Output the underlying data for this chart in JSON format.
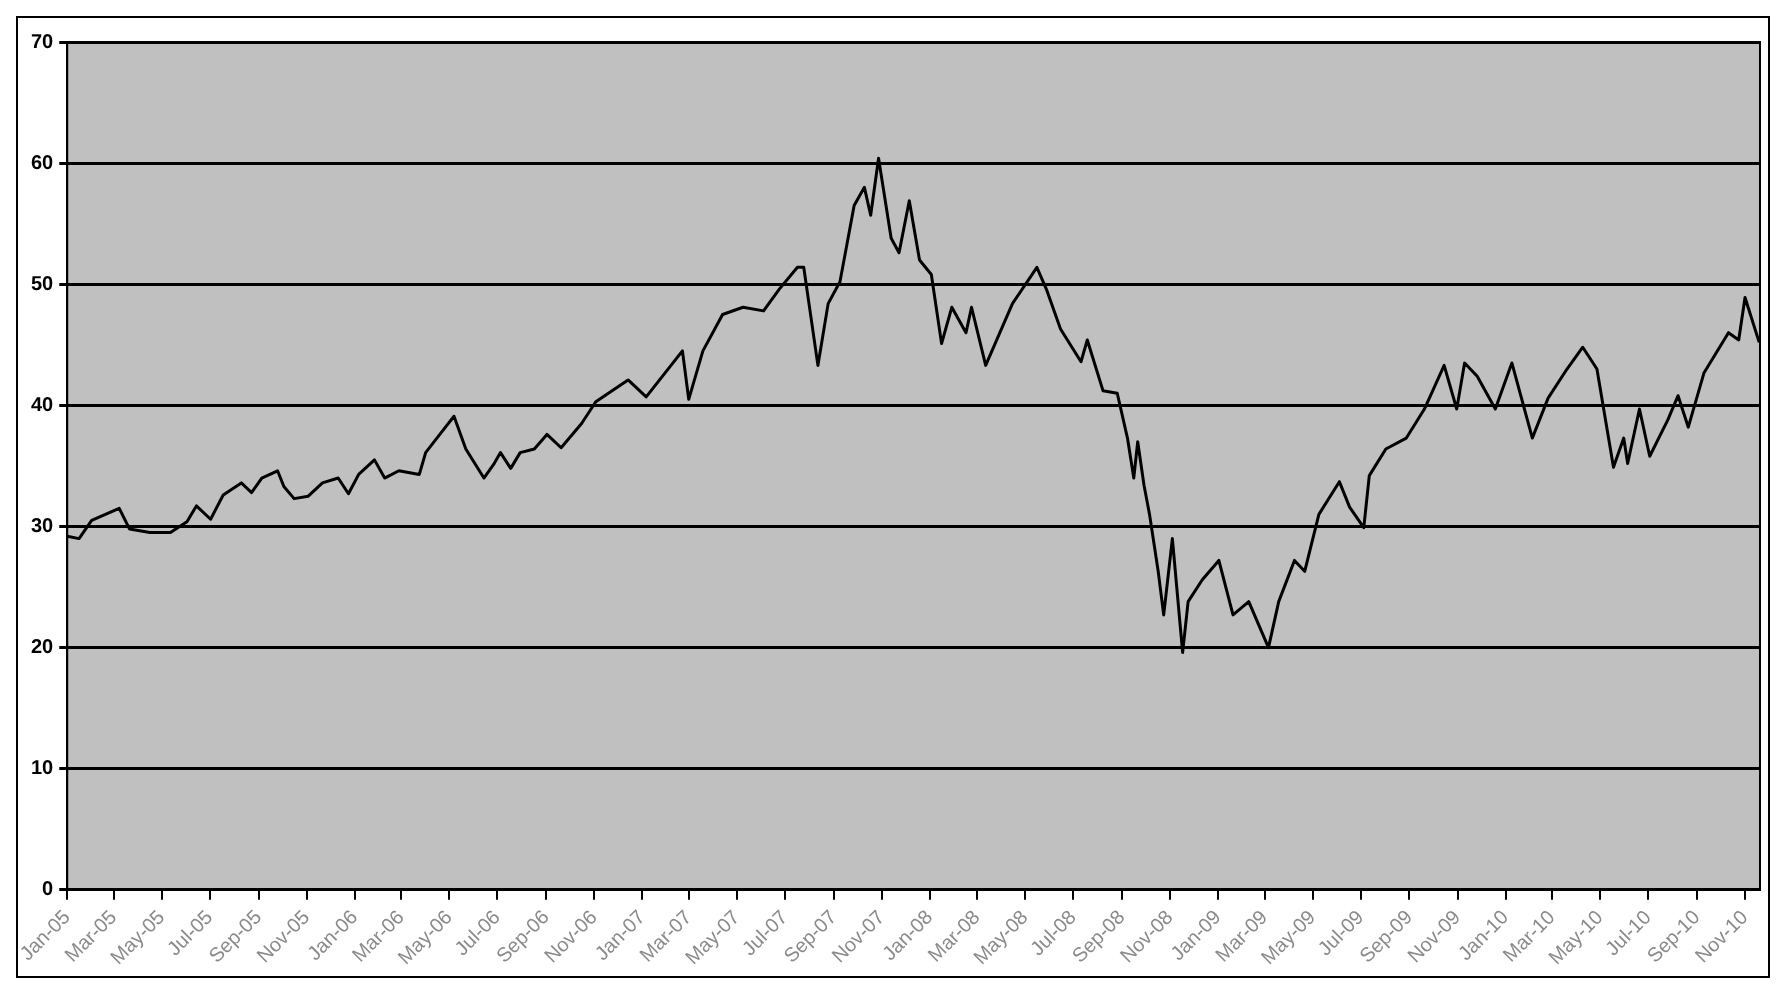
{
  "chart_data": {
    "type": "line",
    "color": "#000000",
    "grid": "y",
    "marker": "none",
    "line_style": "solid",
    "xlim": [
      "2005-01-01",
      "2010-11-20"
    ],
    "ylim": [
      0,
      70
    ],
    "yticks": [
      0,
      10,
      20,
      30,
      40,
      50,
      60,
      70
    ],
    "xticks": [
      {
        "value": "2005-01",
        "label": "Jan-05"
      },
      {
        "value": "2005-03",
        "label": "Mar-05"
      },
      {
        "value": "2005-05",
        "label": "May-05"
      },
      {
        "value": "2005-07",
        "label": "Jul-05"
      },
      {
        "value": "2005-09",
        "label": "Sep-05"
      },
      {
        "value": "2005-11",
        "label": "Nov-05"
      },
      {
        "value": "2006-01",
        "label": "Jan-06"
      },
      {
        "value": "2006-03",
        "label": "Mar-06"
      },
      {
        "value": "2006-05",
        "label": "May-06"
      },
      {
        "value": "2006-07",
        "label": "Jul-06"
      },
      {
        "value": "2006-09",
        "label": "Sep-06"
      },
      {
        "value": "2006-11",
        "label": "Nov-06"
      },
      {
        "value": "2007-01",
        "label": "Jan-07"
      },
      {
        "value": "2007-03",
        "label": "Mar-07"
      },
      {
        "value": "2007-05",
        "label": "May-07"
      },
      {
        "value": "2007-07",
        "label": "Jul-07"
      },
      {
        "value": "2007-09",
        "label": "Sep-07"
      },
      {
        "value": "2007-11",
        "label": "Nov-07"
      },
      {
        "value": "2008-01",
        "label": "Jan-08"
      },
      {
        "value": "2008-03",
        "label": "Mar-08"
      },
      {
        "value": "2008-05",
        "label": "May-08"
      },
      {
        "value": "2008-07",
        "label": "Jul-08"
      },
      {
        "value": "2008-09",
        "label": "Sep-08"
      },
      {
        "value": "2008-11",
        "label": "Nov-08"
      },
      {
        "value": "2009-01",
        "label": "Jan-09"
      },
      {
        "value": "2009-03",
        "label": "Mar-09"
      },
      {
        "value": "2009-05",
        "label": "May-09"
      },
      {
        "value": "2009-07",
        "label": "Jul-09"
      },
      {
        "value": "2009-09",
        "label": "Sep-09"
      },
      {
        "value": "2009-11",
        "label": "Nov-09"
      },
      {
        "value": "2010-01",
        "label": "Jan-10"
      },
      {
        "value": "2010-03",
        "label": "Mar-10"
      },
      {
        "value": "2010-05",
        "label": "May-10"
      },
      {
        "value": "2010-07",
        "label": "Jul-10"
      },
      {
        "value": "2010-09",
        "label": "Sep-10"
      },
      {
        "value": "2010-11",
        "label": "Nov-10"
      }
    ],
    "x": [
      "2005-01-01",
      "2005-01-16",
      "2005-02-01",
      "2005-03-08",
      "2005-03-21",
      "2005-04-16",
      "2005-05-12",
      "2005-06-02",
      "2005-06-14",
      "2005-07-02",
      "2005-07-18",
      "2005-08-10",
      "2005-08-23",
      "2005-09-05",
      "2005-09-25",
      "2005-10-03",
      "2005-10-16",
      "2005-11-03",
      "2005-11-21",
      "2005-12-11",
      "2005-12-24",
      "2006-01-06",
      "2006-01-26",
      "2006-02-08",
      "2006-02-26",
      "2006-03-24",
      "2006-04-01",
      "2006-04-19",
      "2006-05-07",
      "2006-05-22",
      "2006-06-14",
      "2006-06-27",
      "2006-07-05",
      "2006-07-18",
      "2006-07-30",
      "2006-08-17",
      "2006-09-02",
      "2006-09-20",
      "2006-10-16",
      "2006-11-03",
      "2006-12-14",
      "2007-01-06",
      "2007-02-21",
      "2007-03-01",
      "2007-03-19",
      "2007-04-13",
      "2007-05-09",
      "2007-06-04",
      "2007-06-24",
      "2007-07-17",
      "2007-07-25",
      "2007-08-02",
      "2007-08-12",
      "2007-08-25",
      "2007-09-09",
      "2007-09-27",
      "2007-10-10",
      "2007-10-18",
      "2007-10-28",
      "2007-11-13",
      "2007-11-23",
      "2007-12-06",
      "2007-12-19",
      "2008-01-03",
      "2008-01-16",
      "2008-01-29",
      "2008-02-16",
      "2008-02-23",
      "2008-03-12",
      "2008-03-30",
      "2008-04-15",
      "2008-05-16",
      "2008-05-28",
      "2008-06-15",
      "2008-07-11",
      "2008-07-19",
      "2008-08-08",
      "2008-08-26",
      "2008-09-08",
      "2008-09-16",
      "2008-09-21",
      "2008-09-29",
      "2008-10-06",
      "2008-10-17",
      "2008-10-24",
      "2008-11-04",
      "2008-11-17",
      "2008-11-24",
      "2008-12-12",
      "2009-01-02",
      "2009-01-20",
      "2009-02-09",
      "2009-03-06",
      "2009-03-19",
      "2009-04-08",
      "2009-04-21",
      "2009-05-09",
      "2009-06-04",
      "2009-06-17",
      "2009-07-05",
      "2009-07-12",
      "2009-08-02",
      "2009-08-28",
      "2009-09-20",
      "2009-10-15",
      "2009-10-31",
      "2009-11-10",
      "2009-11-26",
      "2009-12-19",
      "2010-01-09",
      "2010-02-04",
      "2010-02-24",
      "2010-03-20",
      "2010-04-09",
      "2010-04-27",
      "2010-05-18",
      "2010-05-31",
      "2010-06-05",
      "2010-06-20",
      "2010-07-03",
      "2010-07-26",
      "2010-08-08",
      "2010-08-21",
      "2010-09-10",
      "2010-10-11",
      "2010-10-24",
      "2010-11-01",
      "2010-11-19"
    ],
    "values": [
      29.2,
      29,
      30.5,
      31.5,
      29.8,
      29.5,
      29.5,
      30.4,
      31.7,
      30.6,
      32.6,
      33.6,
      32.8,
      34,
      34.6,
      33.3,
      32.3,
      32.5,
      33.6,
      34,
      32.7,
      34.3,
      35.5,
      34,
      34.6,
      34.3,
      36.1,
      37.6,
      39.1,
      36.4,
      34,
      35.2,
      36.1,
      34.8,
      36.1,
      36.4,
      37.6,
      36.5,
      38.5,
      40.3,
      42.1,
      40.7,
      44.5,
      40.5,
      44.5,
      47.5,
      48.1,
      47.8,
      49.6,
      51.4,
      51.4,
      47.8,
      43.3,
      48.4,
      50.2,
      56.5,
      58,
      55.7,
      60.4,
      53.8,
      52.6,
      56.9,
      52,
      50.8,
      45.1,
      48.1,
      46,
      48.1,
      43.3,
      46,
      48.4,
      51.4,
      49.6,
      46.3,
      43.6,
      45.4,
      41.2,
      41,
      37.3,
      34,
      37,
      33.4,
      31,
      26.3,
      22.7,
      29,
      19.6,
      23.8,
      25.6,
      27.2,
      22.7,
      23.8,
      20,
      23.8,
      27.2,
      26.3,
      31,
      33.7,
      31.6,
      29.9,
      34.2,
      36.4,
      37.3,
      39.7,
      43.3,
      39.7,
      43.5,
      42.4,
      39.7,
      43.5,
      37.3,
      40.6,
      43,
      44.8,
      43,
      34.9,
      37.3,
      35.2,
      39.7,
      35.8,
      38.8,
      40.8,
      38.2,
      42.7,
      46,
      45.4,
      48.9,
      45.2
    ]
  }
}
